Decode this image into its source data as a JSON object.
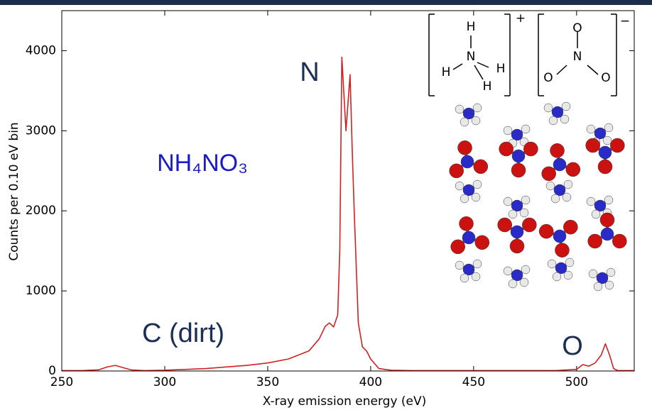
{
  "chart_data": {
    "type": "line",
    "xlabel": "X-ray emission energy (eV)",
    "ylabel": "Counts per 0.10 eV bin",
    "x": [
      250,
      260,
      268,
      272,
      276,
      280,
      284,
      290,
      300,
      320,
      340,
      350,
      360,
      370,
      375,
      378,
      380,
      382,
      384,
      385,
      386,
      388,
      390,
      391,
      392,
      394,
      396,
      398,
      400,
      404,
      410,
      420,
      450,
      490,
      500,
      503,
      506,
      509,
      512,
      514,
      516,
      518,
      520,
      528
    ],
    "values": [
      5,
      5,
      15,
      50,
      70,
      40,
      12,
      5,
      10,
      30,
      70,
      100,
      150,
      250,
      400,
      560,
      600,
      550,
      700,
      1500,
      3920,
      3000,
      3700,
      2800,
      2000,
      600,
      300,
      250,
      150,
      30,
      10,
      5,
      5,
      5,
      20,
      80,
      60,
      100,
      200,
      340,
      200,
      30,
      5,
      5
    ],
    "color": "#d42020",
    "xlim": [
      250,
      528
    ],
    "ylim": [
      0,
      4500
    ],
    "xticks": [
      250,
      300,
      350,
      400,
      450,
      500
    ],
    "yticks": [
      0,
      1000,
      2000,
      3000,
      4000
    ],
    "annotations": [
      "N",
      "NH₄NO₃",
      "C (dirt)",
      "O"
    ],
    "inset_labels": [
      "H",
      "H",
      "N",
      "H",
      "H",
      "+",
      "O",
      "N",
      "O",
      "O",
      "−"
    ]
  }
}
